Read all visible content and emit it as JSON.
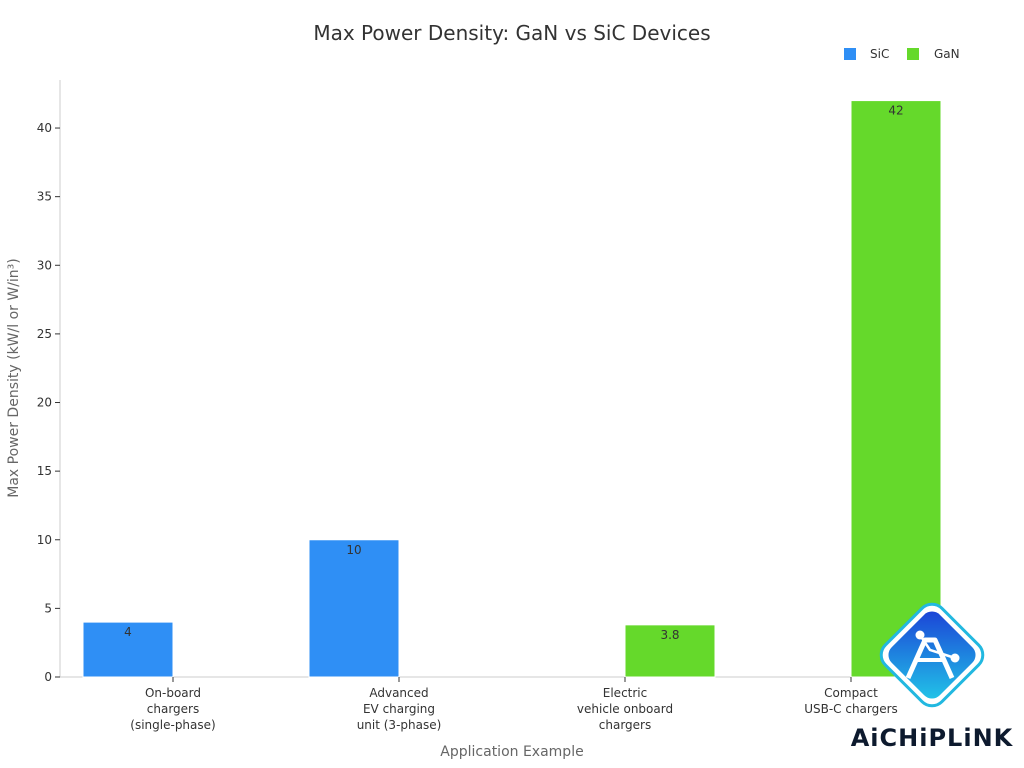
{
  "chart_data": {
    "type": "bar",
    "title": "Max Power Density: GaN vs SiC Devices",
    "xlabel": "Application Example",
    "ylabel": "Max Power Density (kW/l or W/in³)",
    "ylim": [
      0,
      43.5
    ],
    "yticks": [
      0,
      5,
      10,
      15,
      20,
      25,
      30,
      35,
      40
    ],
    "grid": false,
    "legend_position": "top-right",
    "categories": [
      [
        "On-board",
        "chargers",
        "(single-phase)"
      ],
      [
        "Advanced",
        "EV charging",
        "unit (3-phase)"
      ],
      [
        "Electric",
        "vehicle onboard",
        "chargers"
      ],
      [
        "Compact",
        "USB-C chargers"
      ]
    ],
    "series": [
      {
        "name": "SiC",
        "color": "#2f8ff5",
        "values": [
          4,
          10,
          null,
          null
        ],
        "labels": [
          "4",
          "10",
          "",
          ""
        ]
      },
      {
        "name": "GaN",
        "color": "#65d92b",
        "values": [
          null,
          null,
          3.8,
          42
        ],
        "labels": [
          "",
          "",
          "3.8",
          "42"
        ]
      }
    ]
  },
  "brand": {
    "name": "AiCHiPLiNK"
  }
}
